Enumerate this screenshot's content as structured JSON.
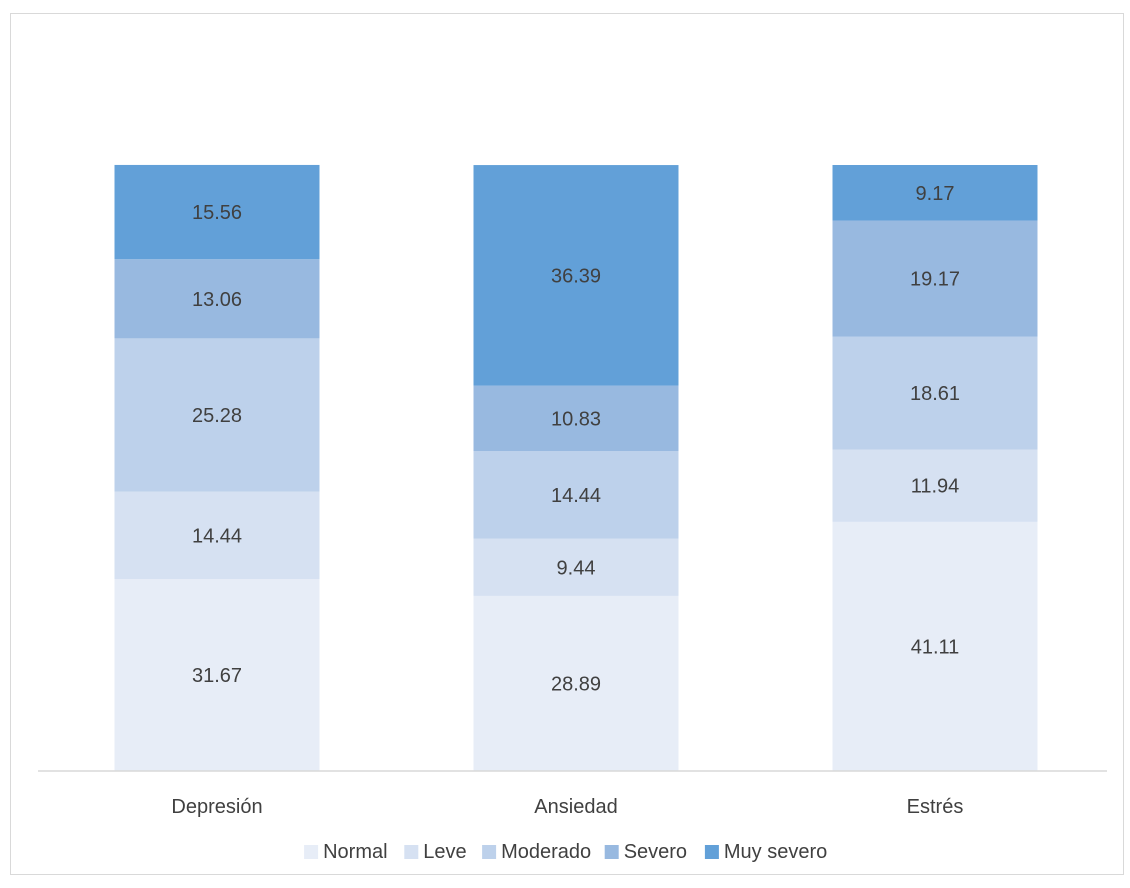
{
  "chart_data": {
    "type": "bar",
    "stacked": true,
    "categories": [
      "Depresión",
      "Ansiedad",
      "Estrés"
    ],
    "series": [
      {
        "name": "Normal",
        "values": [
          31.67,
          28.89,
          41.11
        ],
        "color": "#E7EDF7"
      },
      {
        "name": "Leve",
        "values": [
          14.44,
          9.44,
          11.94
        ],
        "color": "#D6E1F2"
      },
      {
        "name": "Moderado",
        "values": [
          25.28,
          14.44,
          18.61
        ],
        "color": "#BDD1EB"
      },
      {
        "name": "Severo",
        "values": [
          13.06,
          10.83,
          19.17
        ],
        "color": "#98B9E0"
      },
      {
        "name": "Muy severo",
        "values": [
          15.56,
          36.39,
          9.17
        ],
        "color": "#62A0D8"
      }
    ],
    "title": "",
    "xlabel": "",
    "ylabel": "",
    "ylim": [
      0,
      100
    ],
    "grid": false,
    "legend_position": "bottom",
    "data_labels": true
  }
}
